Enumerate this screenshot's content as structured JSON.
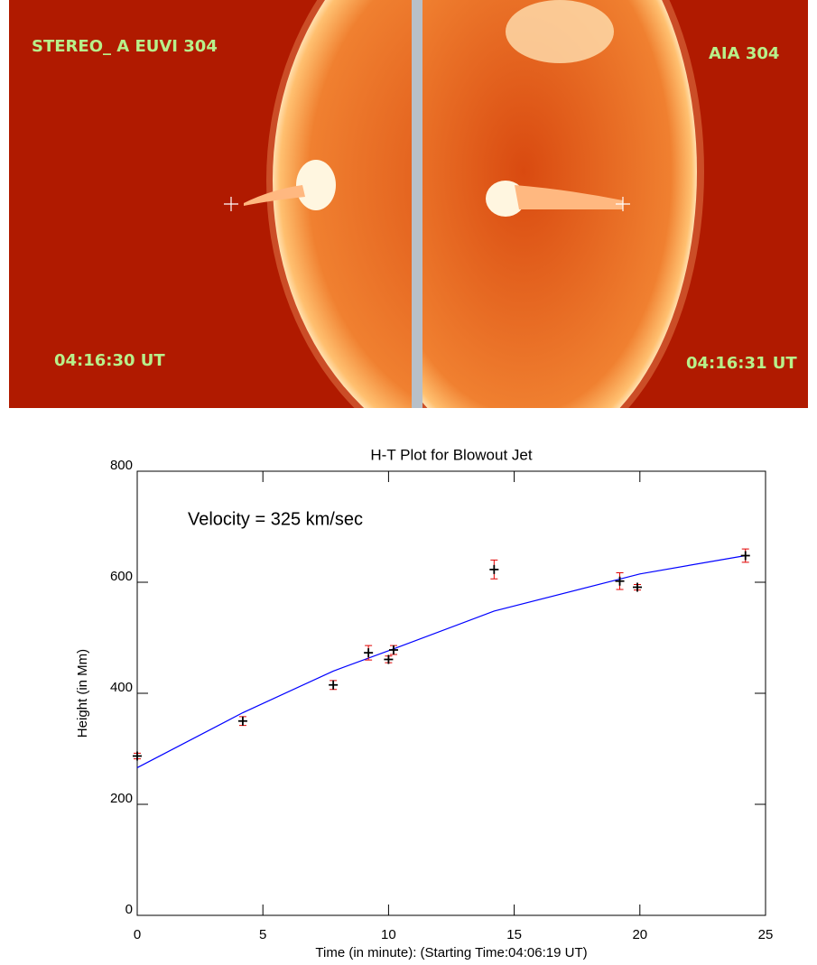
{
  "image": {
    "panels": [
      {
        "label": "STEREO_ A EUVI 304",
        "time": "04:16:30 UT"
      },
      {
        "label": "AIA 304",
        "time": "04:16:31 UT"
      }
    ]
  },
  "chart_data": {
    "type": "scatter",
    "title": "H-T Plot for Blowout Jet",
    "xlabel": "Time (in minute): (Starting Time:04:06:19 UT)",
    "ylabel": "Height (in Mm)",
    "annotation": "Velocity = 325 km/sec",
    "x": [
      0,
      4.2,
      7.8,
      9.2,
      10.0,
      10.2,
      14.2,
      19.2,
      19.9,
      24.2
    ],
    "series": [
      {
        "color": "#000000",
        "error_color": "#e00000",
        "values": [
          287,
          350,
          415,
          473,
          461,
          478,
          623,
          602,
          591,
          648
        ],
        "errors": [
          5,
          8,
          8,
          13,
          6,
          8,
          17,
          15,
          5,
          12
        ]
      }
    ],
    "fit": {
      "color": "#0000ff",
      "x": [
        0,
        4.2,
        7.8,
        10.2,
        14.2,
        20,
        24.2
      ],
      "values": [
        266,
        365,
        440,
        480,
        548,
        615,
        648
      ]
    },
    "xlim": [
      0,
      25
    ],
    "xticks": [
      0,
      5,
      10,
      15,
      20,
      25
    ],
    "ylim": [
      0,
      800
    ],
    "yticks": [
      0,
      200,
      400,
      600,
      800
    ]
  }
}
